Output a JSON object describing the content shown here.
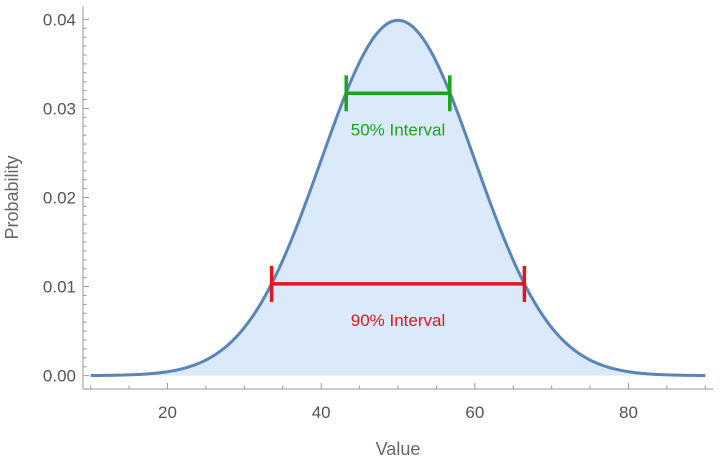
{
  "chart_data": {
    "type": "area",
    "title": "",
    "xlabel": "Value",
    "ylabel": "Probability",
    "xlim": [
      9,
      91
    ],
    "ylim": [
      -0.0015,
      0.0415
    ],
    "xticks": [
      20,
      40,
      60,
      80
    ],
    "yticks": [
      0.0,
      0.01,
      0.02,
      0.03,
      0.04
    ],
    "x_tick_labels": [
      "20",
      "40",
      "60",
      "80"
    ],
    "y_tick_labels": [
      "0.00",
      "0.01",
      "0.02",
      "0.03",
      "0.04"
    ],
    "grid": false,
    "series": [
      {
        "distribution": "normal",
        "mean": 50,
        "sd": 10,
        "x_range": [
          10,
          90
        ],
        "line_color": "#5b84b9",
        "fill_color": "#dbeafb"
      }
    ],
    "intervals": [
      {
        "label": "50% Interval",
        "low": 43.26,
        "high": 56.74,
        "y": 0.0317,
        "color": "#1ca51c"
      },
      {
        "label": "90% Interval",
        "low": 33.55,
        "high": 66.45,
        "y": 0.0103,
        "color": "#e8141c"
      }
    ]
  }
}
